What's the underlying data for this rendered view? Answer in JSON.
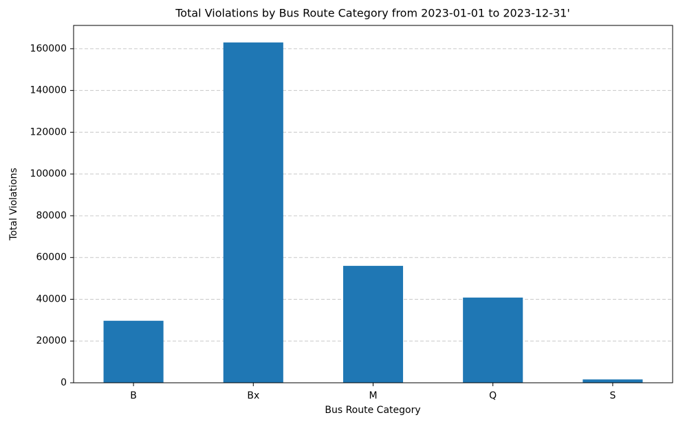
{
  "chart_data": {
    "type": "bar",
    "title": "Total Violations by Bus Route Category from 2023-01-01 to 2023-12-31'",
    "x_label": "Bus Route Category",
    "y_label": "Total Violations",
    "categories": [
      "B",
      "Bx",
      "M",
      "Q",
      "S"
    ],
    "values": [
      29700,
      163000,
      56000,
      40800,
      1600
    ],
    "color": "#1f77b4",
    "ylim": [
      0,
      171150
    ],
    "yticks": [
      0,
      20000,
      40000,
      60000,
      80000,
      100000,
      120000,
      140000,
      160000
    ],
    "grid": true
  }
}
